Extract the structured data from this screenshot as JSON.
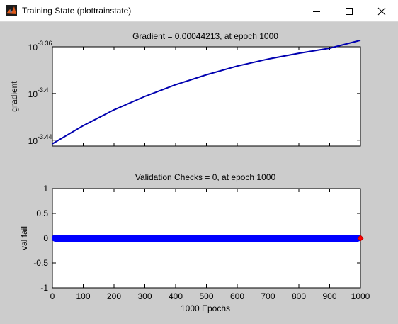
{
  "window": {
    "title": "Training State (plottrainstate)",
    "icon": "matlab-icon",
    "controls": [
      "minimize-icon",
      "maximize-icon",
      "close-icon"
    ]
  },
  "colors": {
    "titlebar": "#ffffff",
    "figure_background": "#cccccc",
    "axes_background": "#ffffff",
    "gradient_line": "#0000b0",
    "val_marker": "#0000ff",
    "val_end_marker": "#ff0000"
  },
  "chart_data": [
    {
      "type": "line",
      "title": "Gradient = 0.00044213, at epoch 1000",
      "xlabel": "",
      "ylabel": "gradient",
      "yscale": "log",
      "xlim": [
        0,
        1000
      ],
      "ylim_exponent": [
        -3.445,
        -3.36
      ],
      "ytick_base": "10",
      "ytick_exponents": [
        "-3.44",
        "-3.4",
        "-3.36"
      ],
      "series": [
        {
          "x": [
            0,
            100,
            200,
            300,
            400,
            500,
            600,
            700,
            800,
            900,
            1000
          ],
          "log10_y": [
            -3.443,
            -3.4275,
            -3.414,
            -3.4025,
            -3.3925,
            -3.384,
            -3.3765,
            -3.3705,
            -3.3655,
            -3.3612,
            -3.3544
          ]
        }
      ]
    },
    {
      "type": "scatter",
      "title": "Validation Checks = 0, at epoch 1000",
      "xlabel": "1000 Epochs",
      "ylabel": "val fail",
      "xlim": [
        0,
        1000
      ],
      "ylim": [
        -1,
        1
      ],
      "xticks": [
        "0",
        "100",
        "200",
        "300",
        "400",
        "500",
        "600",
        "700",
        "800",
        "900",
        "1000"
      ],
      "yticks": [
        "1",
        "0.5",
        "0",
        "-0.5",
        "-1"
      ],
      "series": [
        {
          "x_range": [
            0,
            1000
          ],
          "y": 0,
          "marker": "o"
        }
      ],
      "end_point": {
        "x": 1000,
        "y": 0,
        "marker": "diamond"
      }
    }
  ]
}
